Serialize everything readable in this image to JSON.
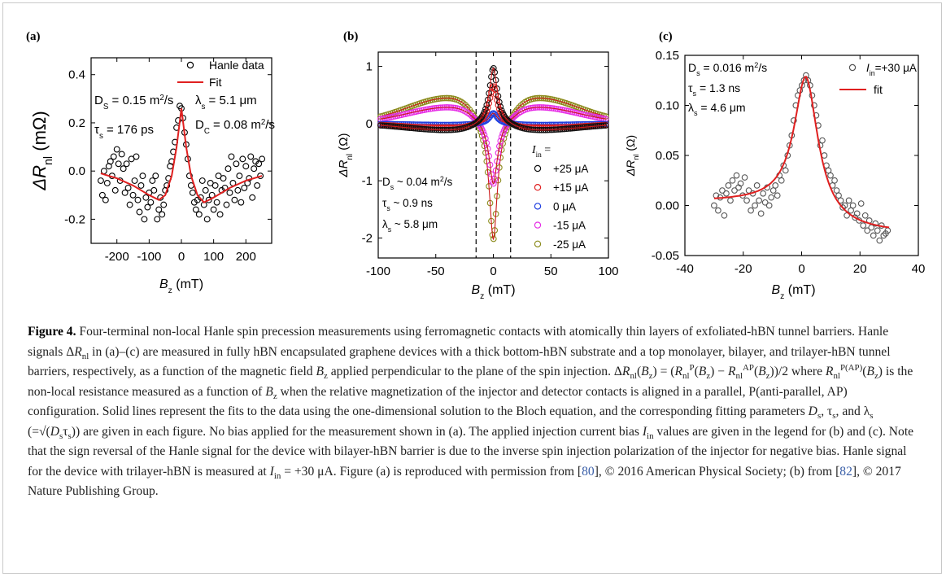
{
  "figure": {
    "panels": [
      {
        "label": "(a)",
        "ylabel_main": "ΔR",
        "ylabel_sub": "nl",
        "ylabel_unit": "(mΩ)",
        "xlabel_main": "B",
        "xlabel_sub": "z",
        "xlabel_unit": "(mT)",
        "annotations": {
          "ds": "D",
          "ds_sub": "S",
          "ds_val": "= 0.15 m",
          "ds_exp": "2",
          "ds_unit": "/s",
          "ts": "τ",
          "ts_sub": "s",
          "ts_val": "= 176 ps",
          "ls": "λ",
          "ls_sub": "s",
          "ls_val": "= 5.1 μm",
          "dc": "D",
          "dc_sub": "C",
          "dc_val": "= 0.08 m",
          "dc_exp": "2",
          "dc_unit": "/s"
        },
        "legend": [
          "Hanle data",
          "Fit"
        ]
      },
      {
        "label": "(b)",
        "ylabel_main": "ΔR",
        "ylabel_sub": "nl",
        "ylabel_unit": "(Ω)",
        "xlabel_main": "B",
        "xlabel_sub": "z",
        "xlabel_unit": "(mT)",
        "annotations": {
          "ds": "D",
          "ds_sub": "s",
          "ds_val": "~ 0.04 m",
          "ds_exp": "2",
          "ds_unit": "/s",
          "ts": "τ",
          "ts_sub": "s",
          "ts_val": "~ 0.9 ns",
          "ls": "λ",
          "ls_sub": "s",
          "ls_val": "~ 5.8 μm"
        },
        "legend_title": "I",
        "legend_title_sub": "in",
        "legend_title_eq": "=",
        "legend": [
          "+25 μA",
          "+15 μA",
          "0 μA",
          "-15 μA",
          "-25 μA"
        ]
      },
      {
        "label": "(c)",
        "ylabel_main": "ΔR",
        "ylabel_sub": "nl",
        "ylabel_unit": "(Ω)",
        "xlabel_main": "B",
        "xlabel_sub": "z",
        "xlabel_unit": "(mT)",
        "annotations": {
          "ds": "D",
          "ds_sub": "s",
          "ds_val": "= 0.016 m",
          "ds_exp": "2",
          "ds_unit": "/s",
          "ts": "τ",
          "ts_sub": "s",
          "ts_val": "= 1.3 ns",
          "ls": "λ",
          "ls_sub": "s",
          "ls_val": "= 4.6 μm"
        },
        "legend": [
          "I",
          "in",
          "=+30 μA",
          "fit"
        ]
      }
    ]
  },
  "chart_data": [
    {
      "type": "scatter",
      "panel": "(a)",
      "xlabel": "Bz (mT)",
      "ylabel": "ΔRnl (mΩ)",
      "xlim": [
        -280,
        280
      ],
      "ylim": [
        -0.3,
        0.47
      ],
      "xticks": [
        -200,
        -100,
        0,
        100,
        200
      ],
      "xtick_labels": [
        "-200",
        "-100",
        "0",
        "100",
        "200"
      ],
      "yticks": [
        -0.2,
        0.0,
        0.2,
        0.4
      ],
      "ytick_labels": [
        "-0.2",
        "0.0",
        "0.2",
        "0.4"
      ],
      "series": [
        {
          "name": "Hanle data",
          "x": [
            -250,
            -245,
            -240,
            -235,
            -230,
            -225,
            -220,
            -215,
            -210,
            -205,
            -200,
            -195,
            -190,
            -185,
            -180,
            -175,
            -170,
            -165,
            -160,
            -155,
            -150,
            -145,
            -140,
            -135,
            -130,
            -125,
            -120,
            -115,
            -110,
            -105,
            -100,
            -95,
            -90,
            -85,
            -80,
            -75,
            -70,
            -65,
            -60,
            -55,
            -50,
            -45,
            -40,
            -35,
            -30,
            -25,
            -20,
            -15,
            -10,
            -5,
            0,
            5,
            10,
            15,
            20,
            25,
            30,
            35,
            40,
            45,
            50,
            55,
            60,
            65,
            70,
            75,
            80,
            85,
            90,
            95,
            100,
            105,
            110,
            115,
            120,
            125,
            130,
            135,
            140,
            145,
            150,
            155,
            160,
            165,
            170,
            175,
            180,
            185,
            190,
            195,
            200,
            205,
            210,
            215,
            220,
            225,
            230,
            235,
            240,
            245,
            250
          ],
          "y": [
            -0.04,
            -0.1,
            0.0,
            -0.12,
            -0.05,
            0.02,
            0.04,
            -0.02,
            0.06,
            -0.08,
            0.09,
            0.03,
            -0.04,
            0.07,
            0.01,
            -0.09,
            0.03,
            -0.07,
            -0.14,
            0.05,
            -0.1,
            -0.04,
            0.06,
            -0.12,
            -0.17,
            -0.06,
            -0.02,
            -0.2,
            -0.11,
            -0.15,
            -0.09,
            -0.13,
            -0.04,
            -0.08,
            -0.02,
            -0.2,
            -0.16,
            -0.11,
            -0.18,
            -0.14,
            -0.08,
            -0.06,
            -0.03,
            0.02,
            0.04,
            0.08,
            0.12,
            0.18,
            0.21,
            0.27,
            0.26,
            0.22,
            0.16,
            0.11,
            0.05,
            -0.02,
            -0.06,
            -0.09,
            -0.13,
            -0.16,
            -0.12,
            -0.18,
            -0.11,
            -0.04,
            -0.14,
            -0.08,
            -0.2,
            -0.12,
            -0.05,
            -0.1,
            -0.16,
            -0.06,
            -0.13,
            -0.02,
            -0.18,
            -0.08,
            -0.03,
            -0.07,
            -0.14,
            0.01,
            -0.09,
            0.06,
            -0.05,
            -0.12,
            0.03,
            -0.08,
            -0.02,
            -0.13,
            0.05,
            -0.07,
            0.02,
            -0.05,
            -0.03,
            0.06,
            -0.11,
            0.01,
            0.04,
            -0.06,
            0.03,
            -0.02,
            0.05
          ],
          "marker": "open-circle",
          "color": "#000000"
        },
        {
          "name": "Fit",
          "x": [
            -250,
            -200,
            -150,
            -100,
            -70,
            -50,
            -30,
            -15,
            0,
            15,
            30,
            50,
            70,
            100,
            150,
            200,
            250
          ],
          "y": [
            -0.01,
            -0.03,
            -0.06,
            -0.1,
            -0.12,
            -0.1,
            -0.02,
            0.1,
            0.26,
            0.1,
            -0.02,
            -0.1,
            -0.13,
            -0.11,
            -0.07,
            -0.04,
            -0.02
          ],
          "style": "line",
          "color": "#e02020"
        }
      ]
    },
    {
      "type": "scatter",
      "panel": "(b)",
      "xlabel": "Bz (mT)",
      "ylabel": "ΔRnl (Ω)",
      "xlim": [
        -100,
        100
      ],
      "ylim": [
        -2.35,
        1.25
      ],
      "xticks": [
        -100,
        -50,
        0,
        50,
        100
      ],
      "xtick_labels": [
        "-100",
        "-50",
        "0",
        "50",
        "100"
      ],
      "yticks": [
        -2,
        -1,
        0,
        1
      ],
      "ytick_labels": [
        "-2",
        "-1",
        "0",
        "1"
      ],
      "dashed_vlines": [
        -15,
        15
      ],
      "series": [
        {
          "name": "+25 μA",
          "color": "#111111",
          "peak": 0.97,
          "lobe": -0.1
        },
        {
          "name": "+15 μA",
          "color": "#e02020",
          "peak": 0.65,
          "lobe": -0.07
        },
        {
          "name": "0 μA",
          "color": "#1f3fe0",
          "peak": 0.18,
          "lobe": -0.02
        },
        {
          "name": "-15 μA",
          "color": "#e62ee6",
          "peak": -1.05,
          "lobe": 0.24
        },
        {
          "name": "-25 μA",
          "color": "#8c8c1e",
          "peak": -2.02,
          "lobe": 0.38
        }
      ]
    },
    {
      "type": "scatter",
      "panel": "(c)",
      "xlabel": "Bz (mT)",
      "ylabel": "ΔRnl (Ω)",
      "xlim": [
        -40,
        40
      ],
      "ylim": [
        -0.05,
        0.15
      ],
      "xticks": [
        -40,
        -20,
        0,
        20,
        40
      ],
      "xtick_labels": [
        "-40",
        "-20",
        "0",
        "20",
        "40"
      ],
      "yticks": [
        -0.05,
        0.0,
        0.05,
        0.1,
        0.15
      ],
      "ytick_labels": [
        "-0.05",
        "0.00",
        "0.05",
        "0.10",
        "0.15"
      ],
      "series": [
        {
          "name": "=+30 μA",
          "x": [
            -30,
            -29.3,
            -28.6,
            -27.9,
            -27.2,
            -26.5,
            -25.8,
            -25.1,
            -24.4,
            -23.7,
            -23,
            -22.3,
            -21.6,
            -20.9,
            -20.2,
            -19.5,
            -18.8,
            -18.1,
            -17.4,
            -16.7,
            -16,
            -15.3,
            -14.6,
            -13.9,
            -13.2,
            -12.5,
            -11.8,
            -11.1,
            -10.4,
            -9.7,
            -9,
            -8.3,
            -7.6,
            -6.9,
            -6.2,
            -5.5,
            -4.8,
            -4.1,
            -3.4,
            -2.7,
            -2,
            -1.3,
            -0.6,
            0.1,
            0.8,
            1.5,
            2.2,
            2.9,
            3.6,
            4.3,
            5,
            5.7,
            6.4,
            7.1,
            7.8,
            8.5,
            9.2,
            9.9,
            10.6,
            11.3,
            12,
            12.7,
            13.4,
            14.1,
            14.8,
            15.5,
            16.2,
            16.9,
            17.6,
            18.3,
            19,
            19.7,
            20.4,
            21.1,
            21.8,
            22.5,
            23.2,
            23.9,
            24.6,
            25.3,
            26,
            26.7,
            27.4,
            28.1,
            28.8,
            29.5
          ],
          "y": [
            0.0,
            0.01,
            -0.005,
            0.008,
            0.015,
            -0.01,
            0.012,
            0.02,
            0.005,
            0.025,
            0.015,
            0.03,
            0.018,
            0.022,
            0.01,
            0.028,
            0.005,
            0.015,
            -0.005,
            0.012,
            0.0,
            0.02,
            0.005,
            -0.008,
            0.012,
            0.003,
            0.018,
            0.0,
            0.008,
            0.015,
            0.02,
            0.01,
            0.03,
            0.025,
            0.04,
            0.035,
            0.05,
            0.06,
            0.07,
            0.085,
            0.1,
            0.11,
            0.115,
            0.12,
            0.125,
            0.13,
            0.125,
            0.12,
            0.11,
            0.1,
            0.09,
            0.08,
            0.06,
            0.065,
            0.05,
            0.04,
            0.035,
            0.03,
            0.02,
            0.025,
            0.015,
            0.01,
            0.005,
            -0.002,
            0.0,
            -0.01,
            0.005,
            -0.005,
            0.0,
            -0.012,
            -0.008,
            -0.015,
            0.002,
            -0.02,
            -0.01,
            -0.025,
            -0.015,
            -0.022,
            -0.03,
            -0.018,
            -0.025,
            -0.035,
            -0.02,
            -0.03,
            -0.028,
            -0.025
          ],
          "marker": "open-circle",
          "color": "#555555"
        },
        {
          "name": "fit",
          "x": [
            -30,
            -25,
            -20,
            -15,
            -10,
            -7,
            -5,
            -3,
            -1,
            1,
            3,
            5,
            7,
            10,
            15,
            20,
            25,
            30
          ],
          "y": [
            0.007,
            0.004,
            0.004,
            0.007,
            0.017,
            0.033,
            0.05,
            0.08,
            0.115,
            0.128,
            0.12,
            0.09,
            0.062,
            0.033,
            0.008,
            -0.012,
            -0.022,
            -0.028
          ],
          "style": "line",
          "color": "#e02020"
        }
      ]
    }
  ],
  "caption": {
    "label": "Figure 4.",
    "text": "Four-terminal non-local Hanle spin precession measurements using ferromagnetic contacts with atomically thin layers of exfoliated-hBN tunnel barriers. Hanle signals ΔR_nl in (a)–(c) are measured in fully hBN encapsulated graphene devices with a thick bottom-hBN substrate and a top monolayer, bilayer, and trilayer-hBN tunnel barriers, respectively, as a function of the magnetic field B_z applied perpendicular to the plane of the spin injection. ΔR_nl(B_z) = (R_nl^P(B_z) − R_nl^AP(B_z))/2 where R_nl^P(AP)(B_z) is the non-local resistance measured as a function of B_z when the relative magnetization of the injector and detector contacts is aligned in a parallel, P(anti-parallel, AP) configuration. Solid lines represent the fits to the data using the one-dimensional solution to the Bloch equation, and the corresponding fitting parameters D_s, τ_s, and λ_s (=√(D_sτ_s)) are given in each figure. No bias applied for the measurement shown in (a). The applied injection current bias I_in values are given in the legend for (b) and (c). Note that the sign reversal of the Hanle signal for the device with bilayer-hBN barrier is due to the inverse spin injection polarization of the injector for negative bias. Hanle signal for the device with trilayer-hBN is measured at I_in = +30 μA. Figure (a) is reproduced with permission from [80], © 2016 American Physical Society; (b) from [82], © 2017 Nature Publishing Group.",
    "ref1": "80",
    "ref2": "82"
  }
}
